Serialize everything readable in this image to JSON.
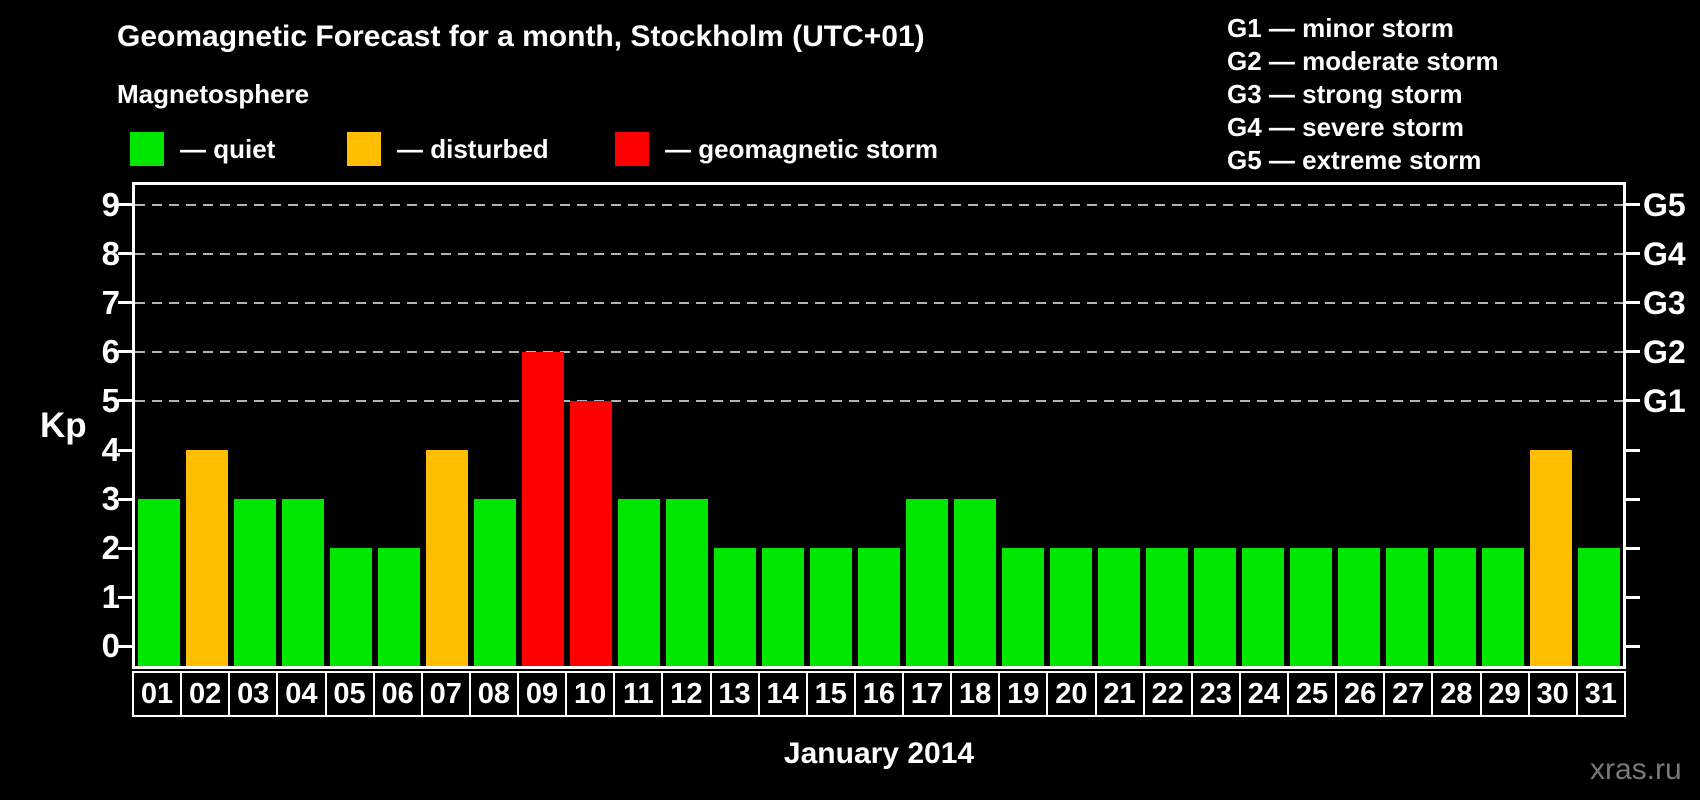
{
  "title": "Geomagnetic Forecast for a month, Stockholm (UTC+01)",
  "subtitle": "Magnetosphere",
  "legend": {
    "items": [
      {
        "key": "quiet",
        "label": "— quiet",
        "color": "#00e600"
      },
      {
        "key": "disturbed",
        "label": "— disturbed",
        "color": "#ffbe00"
      },
      {
        "key": "storm",
        "label": "— geomagnetic storm",
        "color": "#ff0000"
      }
    ]
  },
  "storm_scale": [
    "G1 — minor storm",
    "G2 — moderate storm",
    "G3 — strong storm",
    "G4 — severe storm",
    "G5 — extreme storm"
  ],
  "axes": {
    "y_label": "Kp",
    "y_ticks": [
      0,
      1,
      2,
      3,
      4,
      5,
      6,
      7,
      8,
      9
    ],
    "right_labels": [
      {
        "value": 5,
        "label": "G1"
      },
      {
        "value": 6,
        "label": "G2"
      },
      {
        "value": 7,
        "label": "G3"
      },
      {
        "value": 8,
        "label": "G4"
      },
      {
        "value": 9,
        "label": "G5"
      }
    ],
    "x_label": "January 2014"
  },
  "watermark": "xras.ru",
  "chart_data": {
    "type": "bar",
    "title": "Geomagnetic Forecast for a month, Stockholm (UTC+01)",
    "xlabel": "January 2014",
    "ylabel": "Kp",
    "ylim": [
      0,
      9
    ],
    "grid_levels": [
      5,
      6,
      7,
      8,
      9
    ],
    "grid_on": true,
    "legend_position": "top-left",
    "categories": [
      "01",
      "02",
      "03",
      "04",
      "05",
      "06",
      "07",
      "08",
      "09",
      "10",
      "11",
      "12",
      "13",
      "14",
      "15",
      "16",
      "17",
      "18",
      "19",
      "20",
      "21",
      "22",
      "23",
      "24",
      "25",
      "26",
      "27",
      "28",
      "29",
      "30",
      "31"
    ],
    "values": [
      3,
      4,
      3,
      3,
      2,
      2,
      4,
      3,
      6,
      5,
      3,
      3,
      2,
      2,
      2,
      2,
      3,
      3,
      2,
      2,
      2,
      2,
      2,
      2,
      2,
      2,
      2,
      2,
      2,
      4,
      2
    ],
    "statuses": [
      "quiet",
      "disturbed",
      "quiet",
      "quiet",
      "quiet",
      "quiet",
      "disturbed",
      "quiet",
      "storm",
      "storm",
      "quiet",
      "quiet",
      "quiet",
      "quiet",
      "quiet",
      "quiet",
      "quiet",
      "quiet",
      "quiet",
      "quiet",
      "quiet",
      "quiet",
      "quiet",
      "quiet",
      "quiet",
      "quiet",
      "quiet",
      "quiet",
      "quiet",
      "disturbed",
      "quiet"
    ]
  }
}
